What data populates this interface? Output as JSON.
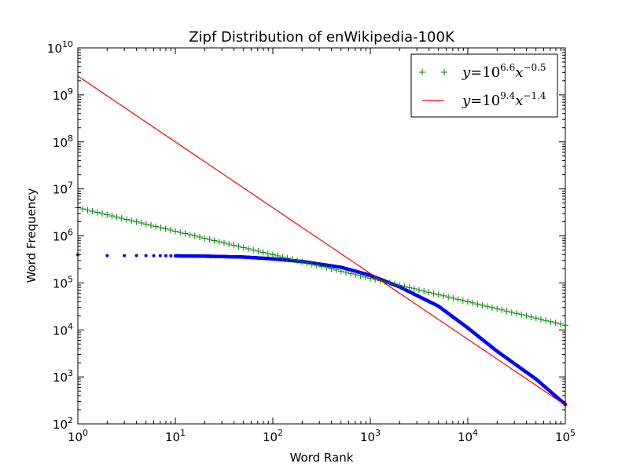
{
  "chart_data": {
    "type": "scatter",
    "title": "Zipf Distribution of enWikipedia-100K",
    "xlabel": "Word Rank",
    "ylabel": "Word Frequency",
    "xscale": "log",
    "yscale": "log",
    "xlim": [
      1,
      100000
    ],
    "ylim": [
      100,
      10000000000
    ],
    "x_ticks": [
      {
        "value": 1,
        "base": "10",
        "exp": "0"
      },
      {
        "value": 10,
        "base": "10",
        "exp": "1"
      },
      {
        "value": 100,
        "base": "10",
        "exp": "2"
      },
      {
        "value": 1000,
        "base": "10",
        "exp": "3"
      },
      {
        "value": 10000,
        "base": "10",
        "exp": "4"
      },
      {
        "value": 100000,
        "base": "10",
        "exp": "5"
      }
    ],
    "y_ticks": [
      {
        "value": 100,
        "base": "10",
        "exp": "2"
      },
      {
        "value": 1000,
        "base": "10",
        "exp": "3"
      },
      {
        "value": 10000,
        "base": "10",
        "exp": "4"
      },
      {
        "value": 100000,
        "base": "10",
        "exp": "5"
      },
      {
        "value": 1000000,
        "base": "10",
        "exp": "6"
      },
      {
        "value": 10000000,
        "base": "10",
        "exp": "7"
      },
      {
        "value": 100000000,
        "base": "10",
        "exp": "8"
      },
      {
        "value": 1000000000,
        "base": "10",
        "exp": "9"
      },
      {
        "value": 10000000000,
        "base": "10",
        "exp": "10"
      }
    ],
    "grid": false,
    "legend_position": "top-right",
    "series": [
      {
        "kind": "observed",
        "style": "dots",
        "color": "#0000ff",
        "points": [
          [
            1,
            398000
          ],
          [
            2,
            380000
          ],
          [
            3,
            380000
          ],
          [
            4,
            380000
          ],
          [
            5,
            380000
          ],
          [
            6,
            378000
          ],
          [
            7,
            378000
          ],
          [
            8,
            378000
          ],
          [
            9,
            376000
          ],
          [
            10,
            376000
          ],
          [
            20,
            370000
          ],
          [
            50,
            355000
          ],
          [
            100,
            325000
          ],
          [
            200,
            285000
          ],
          [
            500,
            215000
          ],
          [
            1000,
            145000
          ],
          [
            2000,
            82000
          ],
          [
            5000,
            32000
          ],
          [
            10000,
            11000
          ],
          [
            20000,
            3500
          ],
          [
            50000,
            900
          ],
          [
            100000,
            260
          ]
        ]
      },
      {
        "name": "y=10^{6.6} x^{-0.5}",
        "style": "plus",
        "color": "#008000",
        "coef_log10": 6.6,
        "exponent": -0.5
      },
      {
        "name": "y=10^{9.4} x^{-1.4}",
        "style": "line",
        "color": "#ff0000",
        "coef_log10": 9.4,
        "exponent": -1.4
      }
    ],
    "legend": [
      {
        "series": 1,
        "text_y": "y",
        "text_eq": "=10",
        "coef": "6.6",
        "text_x": "x",
        "exp": "−0.5"
      },
      {
        "series": 2,
        "text_y": "y",
        "text_eq": "=10",
        "coef": "9.4",
        "text_x": "x",
        "exp": "−1.4"
      }
    ]
  }
}
